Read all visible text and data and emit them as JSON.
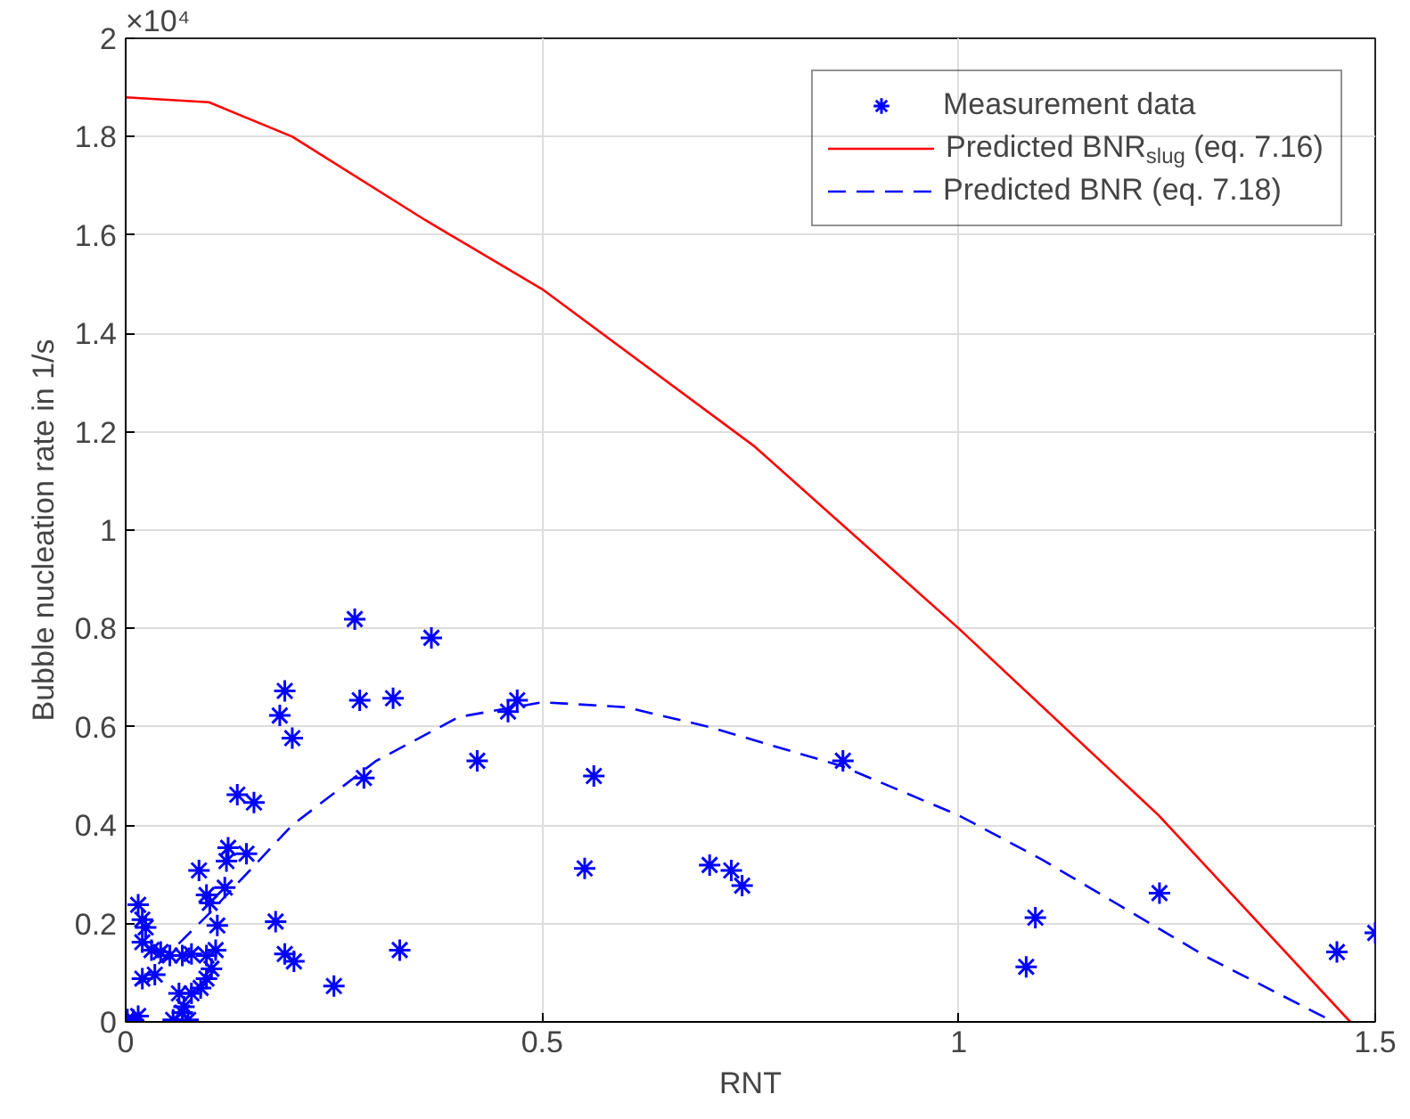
{
  "chart_data": {
    "type": "scatter",
    "xlabel": "RNT",
    "ylabel": "Bubble nucleation rate in 1/s",
    "annotations": [
      "×10⁴"
    ],
    "xlim": [
      0,
      1.5
    ],
    "ylim": [
      0,
      2
    ],
    "xticks": [
      0,
      0.5,
      1,
      1.5
    ],
    "yticks": [
      0,
      0.2,
      0.4,
      0.6,
      0.8,
      1,
      1.2,
      1.4,
      1.6,
      1.8,
      2
    ],
    "grid": true,
    "legend": "top right",
    "series": [
      {
        "name": "Measurement data",
        "marker": "cross",
        "color": "#0000ff",
        "x": [
          0.275,
          0.367,
          0.191,
          0.185,
          0.321,
          0.281,
          0.2,
          0.134,
          0.154,
          0.286,
          0.422,
          0.459,
          0.47,
          0.562,
          0.551,
          0.701,
          0.727,
          0.74,
          0.861,
          0.18,
          0.191,
          0.202,
          0.329,
          0.25,
          1.092,
          1.081,
          1.241,
          1.454,
          1.5,
          0.123,
          0.121,
          0.145,
          0.088,
          0.097,
          0.101,
          0.119,
          0.11,
          0.015,
          0.02,
          0.024,
          0.02,
          0.031,
          0.042,
          0.053,
          0.068,
          0.079,
          0.097,
          0.108,
          0.103,
          0.097,
          0.09,
          0.079,
          0.064,
          0.07,
          0.02,
          0.035,
          0.009,
          0.002,
          0.015,
          0.057,
          0.075,
          0.068
        ],
        "values": [
          0.819,
          0.781,
          0.673,
          0.623,
          0.658,
          0.654,
          0.577,
          0.462,
          0.446,
          0.496,
          0.531,
          0.631,
          0.654,
          0.5,
          0.312,
          0.319,
          0.308,
          0.277,
          0.531,
          0.204,
          0.138,
          0.123,
          0.146,
          0.073,
          0.212,
          0.112,
          0.262,
          0.142,
          0.181,
          0.354,
          0.327,
          0.342,
          0.308,
          0.258,
          0.242,
          0.273,
          0.196,
          0.238,
          0.208,
          0.192,
          0.162,
          0.146,
          0.142,
          0.135,
          0.135,
          0.138,
          0.135,
          0.146,
          0.108,
          0.088,
          0.069,
          0.058,
          0.058,
          0.031,
          0.088,
          0.096,
          0.004,
          0.005,
          0.012,
          0.004,
          0.004,
          0.019
        ]
      },
      {
        "name": "Predicted BNR$_{slug}$ (eq. 7.16)",
        "type": "line",
        "line_style": "solid",
        "color": "#ff0000",
        "x": [
          0,
          0.1,
          0.2,
          0.36,
          0.5,
          0.755,
          1.0,
          1.24,
          1.47
        ],
        "values": [
          1.88,
          1.87,
          1.8,
          1.63,
          1.49,
          1.17,
          0.8,
          0.42,
          0
        ]
      },
      {
        "name": "Predicted BNR (eq. 7.18)",
        "type": "line",
        "line_style": "dashed",
        "color": "#0000ff",
        "x": [
          0.015,
          0.1,
          0.2,
          0.3,
          0.4,
          0.5,
          0.6,
          0.7,
          0.86,
          1.0,
          1.1,
          1.2,
          1.3,
          1.45
        ],
        "values": [
          0.077,
          0.22,
          0.4,
          0.53,
          0.62,
          0.65,
          0.64,
          0.6,
          0.52,
          0.42,
          0.33,
          0.23,
          0.13,
          0
        ]
      }
    ]
  }
}
